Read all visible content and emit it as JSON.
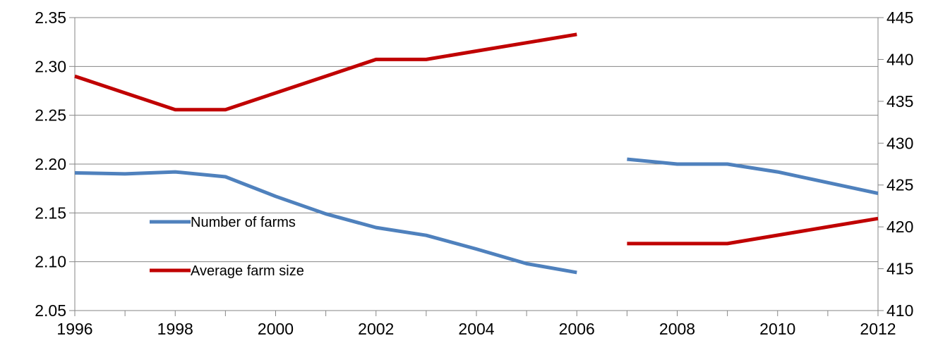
{
  "chart_data": {
    "type": "line",
    "x": [
      1996,
      1997,
      1998,
      1999,
      2000,
      2001,
      2002,
      2003,
      2004,
      2005,
      2006,
      2007,
      2008,
      2009,
      2010,
      2011,
      2012
    ],
    "x_tick_labels": [
      "1996",
      "1998",
      "2000",
      "2002",
      "2004",
      "2006",
      "2008",
      "2010",
      "2012"
    ],
    "xlim": [
      1996,
      2012
    ],
    "ylim_left": [
      2.05,
      2.35
    ],
    "left_ticks": [
      "2.05",
      "2.10",
      "2.15",
      "2.20",
      "2.25",
      "2.30",
      "2.35"
    ],
    "ylim_right": [
      410,
      445
    ],
    "right_ticks": [
      "410",
      "415",
      "420",
      "425",
      "430",
      "435",
      "440",
      "445"
    ],
    "grid": true,
    "legend_position": "center-left",
    "series": [
      {
        "name": "Number of farms",
        "axis": "left",
        "color": "#4f81bd",
        "values": [
          2.191,
          2.19,
          2.192,
          2.187,
          2.167,
          2.149,
          2.135,
          2.127,
          2.113,
          2.098,
          2.089,
          2.205,
          2.2,
          2.2,
          2.192,
          2.181,
          2.17
        ]
      },
      {
        "name": "Average farm size",
        "axis": "right",
        "color": "#c00000",
        "values": [
          438,
          436,
          434,
          434,
          436,
          438,
          440,
          440,
          441,
          442,
          443,
          418,
          418,
          418,
          419,
          420,
          421
        ]
      }
    ],
    "breaks_after": [
      2006
    ]
  }
}
